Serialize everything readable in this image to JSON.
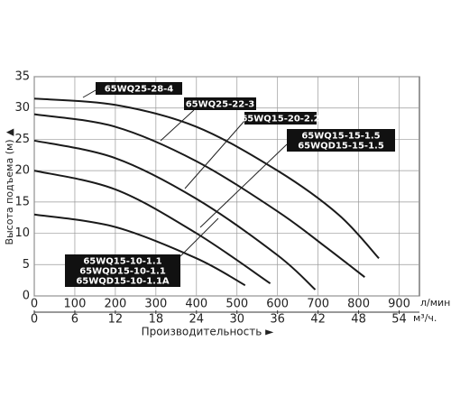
{
  "chart_data": {
    "type": "line",
    "ylabel": "Высота подъема (м) ▲",
    "xlabel": "Производительность ►",
    "xunit": "л/мин.",
    "x2unit": "м³/ч.",
    "xlim": [
      0,
      950
    ],
    "xticks": [
      0,
      100,
      200,
      300,
      400,
      500,
      600,
      700,
      800,
      900
    ],
    "x2lim": [
      0,
      57
    ],
    "x2ticks": [
      0,
      6,
      12,
      18,
      24,
      30,
      36,
      42,
      48,
      54
    ],
    "ylim": [
      0,
      35
    ],
    "yticks": [
      0,
      5,
      10,
      15,
      20,
      25,
      30,
      35
    ],
    "grid": true,
    "series": [
      {
        "names": [
          "65WQ25-28-4"
        ],
        "color": "#1a1a1a",
        "x": [
          0,
          200,
          400,
          600,
          750,
          850
        ],
        "values": [
          31.5,
          30.5,
          27,
          20,
          13,
          6
        ]
      },
      {
        "names": [
          "65WQ25-22-3"
        ],
        "color": "#1a1a1a",
        "x": [
          0,
          200,
          400,
          600,
          715,
          815
        ],
        "values": [
          29,
          27,
          21.5,
          13.5,
          8,
          3
        ]
      },
      {
        "names": [
          "65WQ15-20-2.2"
        ],
        "color": "#1a1a1a",
        "x": [
          0,
          200,
          400,
          600,
          693
        ],
        "values": [
          24.8,
          22,
          15.5,
          6.5,
          1
        ]
      },
      {
        "names": [
          "65WQ15-15-1.5",
          "65WQD15-15-1.5"
        ],
        "color": "#1a1a1a",
        "x": [
          0,
          200,
          400,
          582
        ],
        "values": [
          20,
          17,
          10,
          2
        ]
      },
      {
        "names": [
          "65WQ15-10-1.1",
          "65WQD15-10-1.1",
          "65WQD15-10-1.1A"
        ],
        "color": "#1a1a1a",
        "x": [
          0,
          200,
          400,
          520
        ],
        "values": [
          13,
          11,
          6,
          1.7
        ]
      }
    ]
  }
}
